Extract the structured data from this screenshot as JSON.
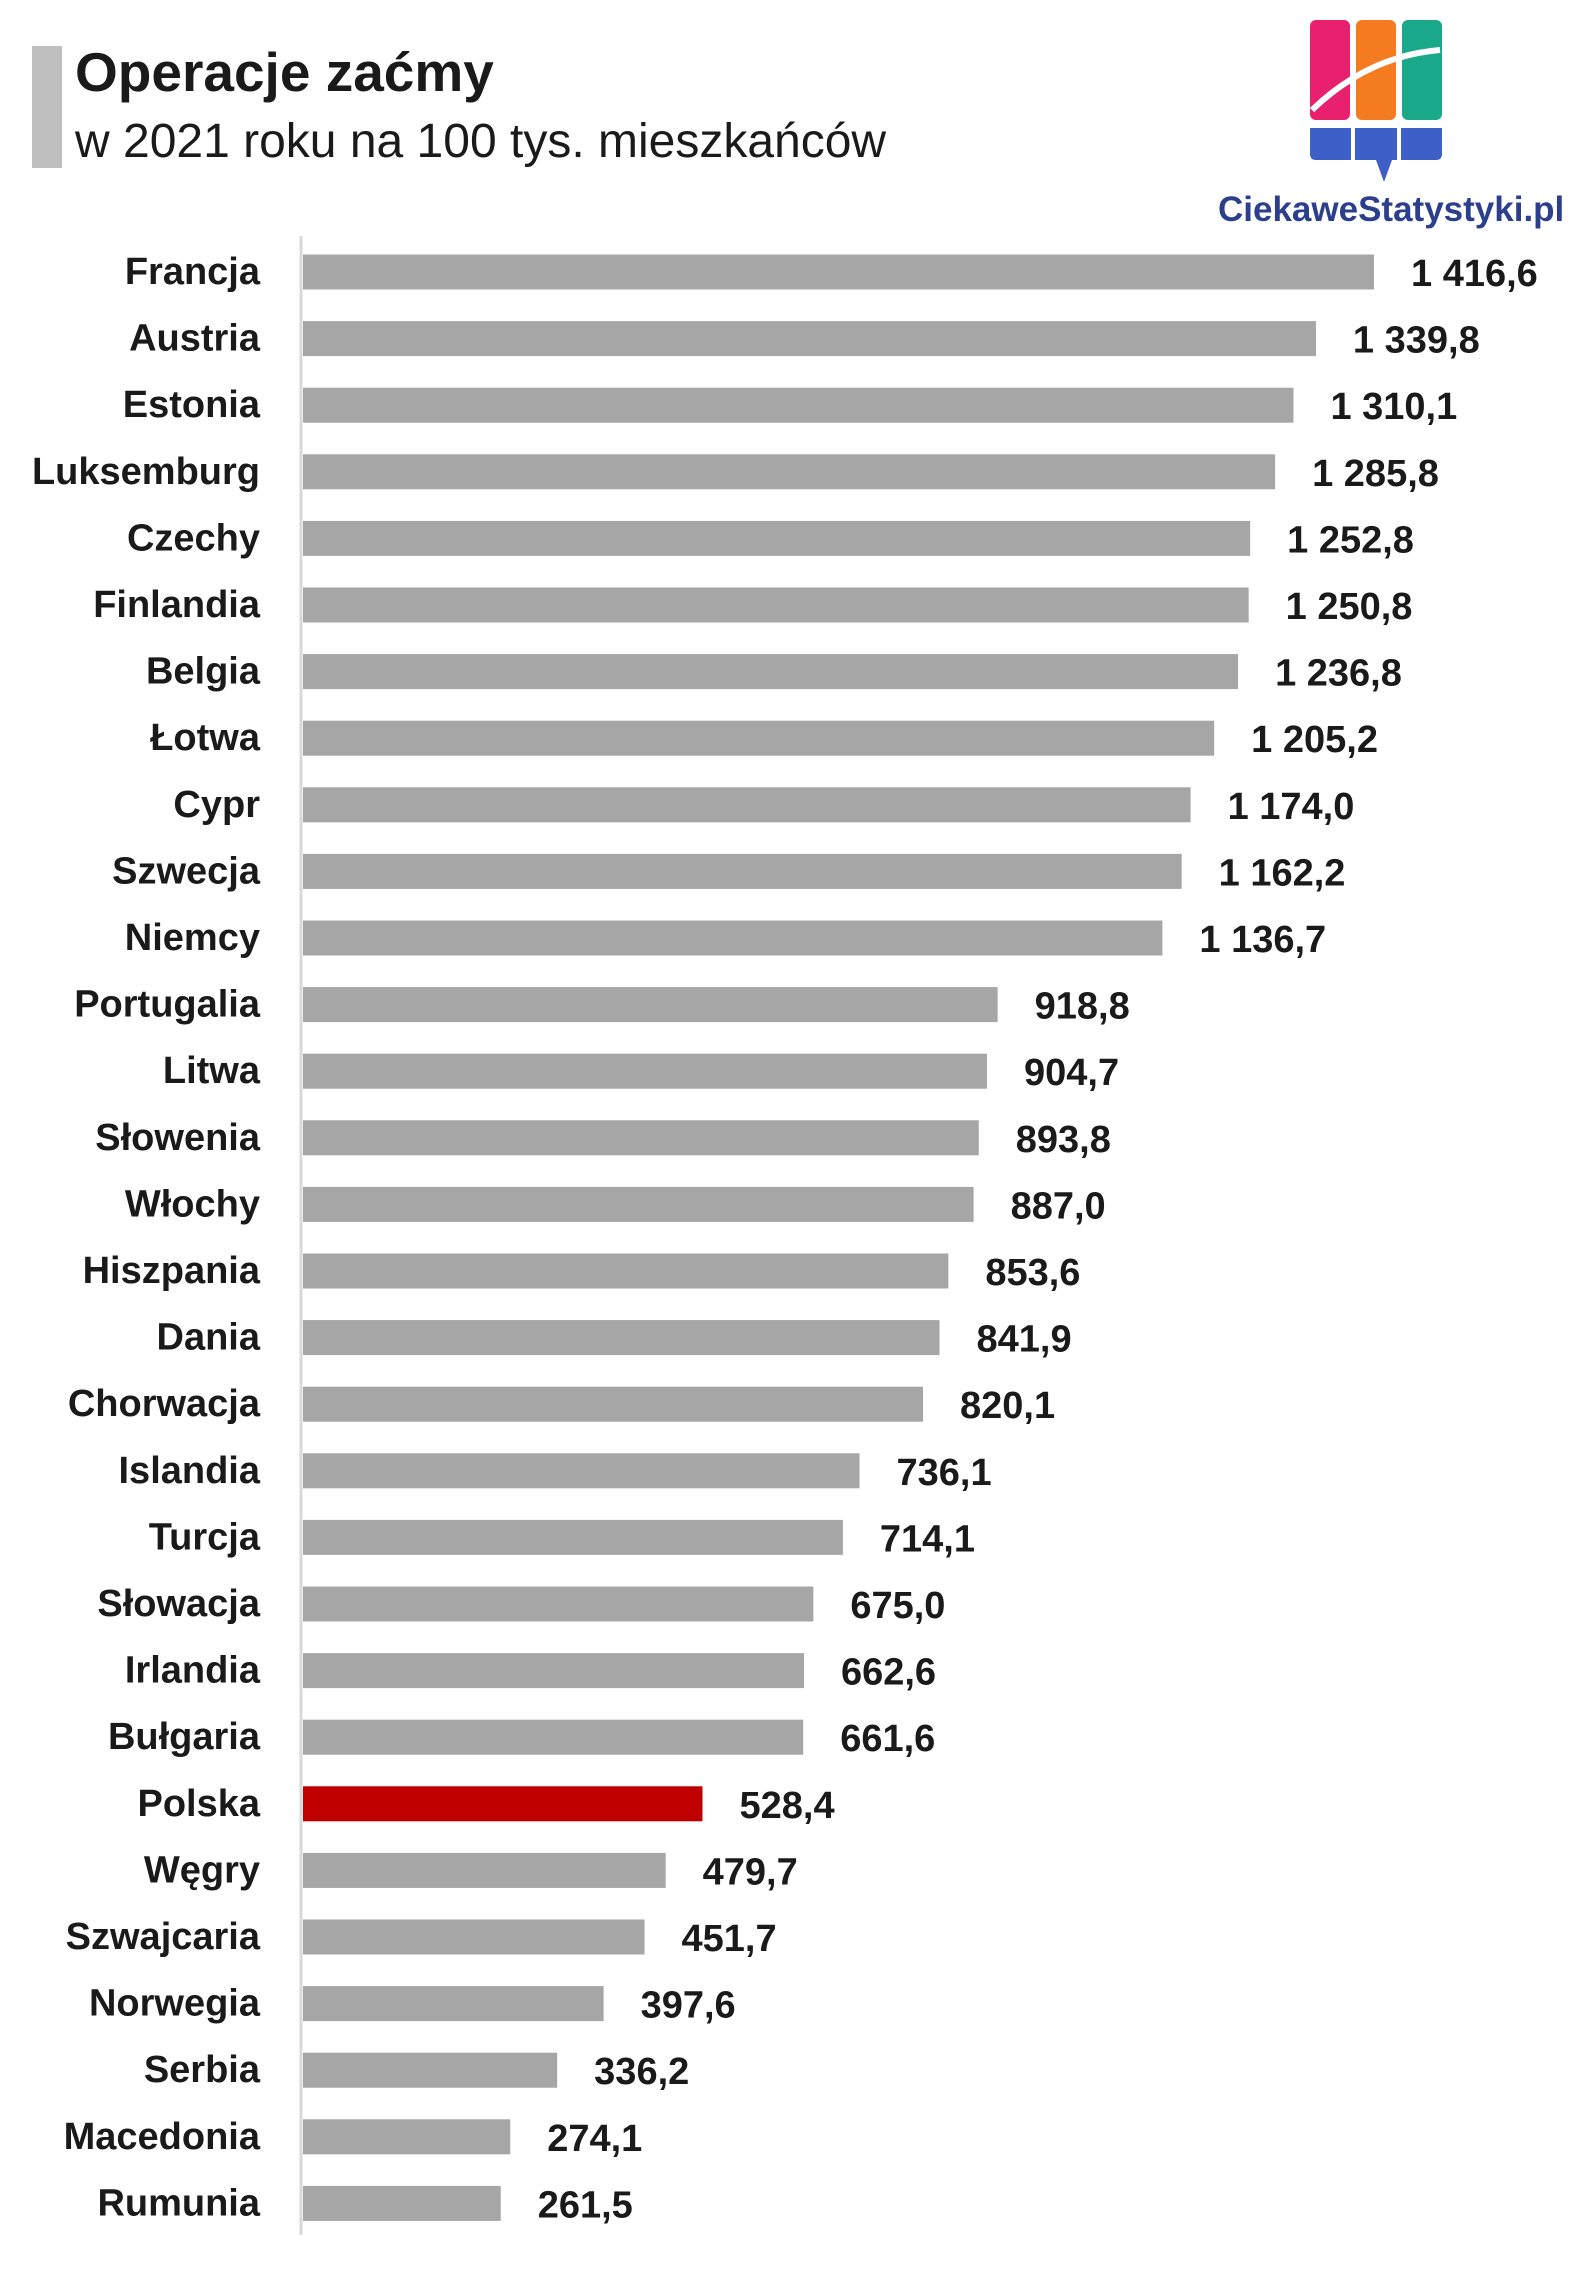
{
  "chart_data": {
    "type": "bar",
    "orientation": "horizontal",
    "title": "Operacje zaćmy",
    "subtitle": "w 2021 roku na 100 tys. mieszkańców",
    "categories": [
      "Francja",
      "Austria",
      "Estonia",
      "Luksemburg",
      "Czechy",
      "Finlandia",
      "Belgia",
      "Łotwa",
      "Cypr",
      "Szwecja",
      "Niemcy",
      "Portugalia",
      "Litwa",
      "Słowenia",
      "Włochy",
      "Hiszpania",
      "Dania",
      "Chorwacja",
      "Islandia",
      "Turcja",
      "Słowacja",
      "Irlandia",
      "Bułgaria",
      "Polska",
      "Węgry",
      "Szwajcaria",
      "Norwegia",
      "Serbia",
      "Macedonia",
      "Rumunia"
    ],
    "values": [
      1416.6,
      1339.8,
      1310.1,
      1285.8,
      1252.8,
      1250.8,
      1236.8,
      1205.2,
      1174.0,
      1162.2,
      1136.7,
      918.8,
      904.7,
      893.8,
      887.0,
      853.6,
      841.9,
      820.1,
      736.1,
      714.1,
      675.0,
      662.6,
      661.6,
      528.4,
      479.7,
      451.7,
      397.6,
      336.2,
      274.1,
      261.5
    ],
    "value_labels": [
      "1 416,6",
      "1 339,8",
      "1 310,1",
      "1 285,8",
      "1 252,8",
      "1 250,8",
      "1 236,8",
      "1 205,2",
      "1 174,0",
      "1 162,2",
      "1 136,7",
      "918,8",
      "904,7",
      "893,8",
      "887,0",
      "853,6",
      "841,9",
      "820,1",
      "736,1",
      "714,1",
      "675,0",
      "662,6",
      "661,6",
      "528,4",
      "479,7",
      "451,7",
      "397,6",
      "336,2",
      "274,1",
      "261,5"
    ],
    "highlight": "Polska",
    "xlim": [
      0,
      1500
    ],
    "grid": false,
    "legend": "none",
    "colors": {
      "bar": "#a6a6a6",
      "highlight": "#c00000",
      "axis": "#d9d9d9"
    }
  },
  "brand": {
    "text": "CiekaweStatystyki.pl",
    "colors": {
      "pink": "#e8206e",
      "orange": "#f47b20",
      "teal": "#1aa88a",
      "blue": "#3f5fc8",
      "text": "#2c3f8c"
    }
  }
}
